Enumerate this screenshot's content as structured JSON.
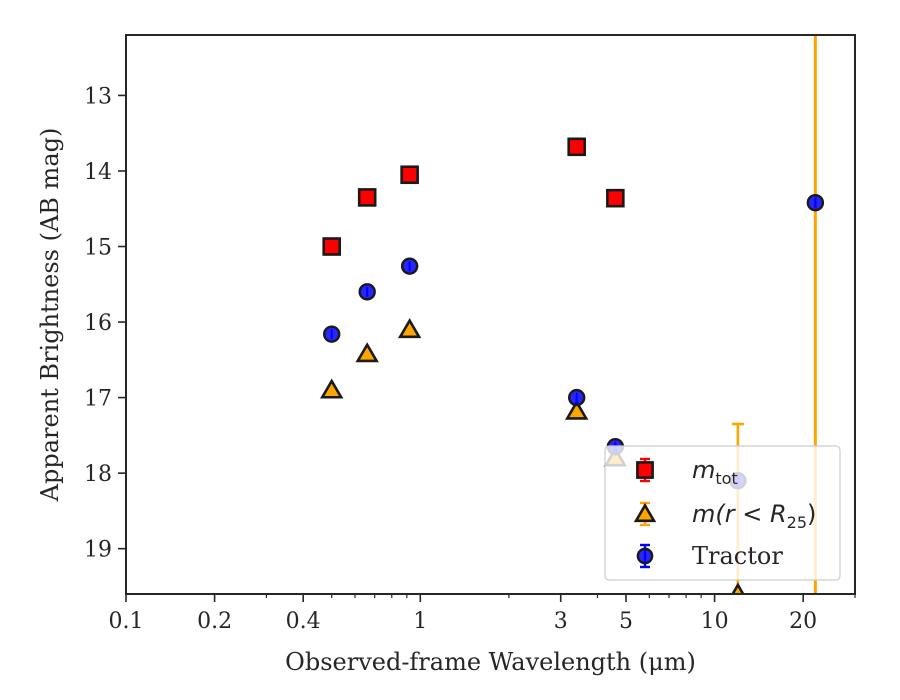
{
  "chart_data": {
    "type": "scatter",
    "title": "",
    "xlabel": "Observed-frame Wavelength (μm)",
    "ylabel": "Apparent Brightness (AB mag)",
    "xscale": "log",
    "yscale": "linear",
    "y_inverted": true,
    "xlim": [
      0.1,
      30
    ],
    "ylim": [
      19.6,
      12.2
    ],
    "xticks": [
      {
        "value": 0.1,
        "label": "0.1"
      },
      {
        "value": 0.2,
        "label": "0.2"
      },
      {
        "value": 0.4,
        "label": "0.4"
      },
      {
        "value": 1,
        "label": "1"
      },
      {
        "value": 3,
        "label": "3"
      },
      {
        "value": 5,
        "label": "5"
      },
      {
        "value": 10,
        "label": "10"
      },
      {
        "value": 20,
        "label": "20"
      }
    ],
    "yticks": [
      {
        "value": 13,
        "label": "13"
      },
      {
        "value": 14,
        "label": "14"
      },
      {
        "value": 15,
        "label": "15"
      },
      {
        "value": 16,
        "label": "16"
      },
      {
        "value": 17,
        "label": "17"
      },
      {
        "value": 18,
        "label": "18"
      },
      {
        "value": 19,
        "label": "19"
      }
    ],
    "grid": false,
    "legend_position": "lower-right",
    "series": [
      {
        "name": "m_tot",
        "legend_main": "m",
        "legend_sub": "tot",
        "marker": "square",
        "color": "#ff0000",
        "errcolor": "#ff0000",
        "points": [
          {
            "x": 0.5,
            "y": 15.0
          },
          {
            "x": 0.66,
            "y": 14.35
          },
          {
            "x": 0.92,
            "y": 14.05
          },
          {
            "x": 3.4,
            "y": 13.68
          },
          {
            "x": 4.6,
            "y": 14.36
          }
        ]
      },
      {
        "name": "m(r < R_25)",
        "legend_main": "m(r < R",
        "legend_sub": "25",
        "legend_close": ")",
        "marker": "triangle",
        "color": "#ffa500",
        "errcolor": "#ffa500",
        "points": [
          {
            "x": 0.5,
            "y": 16.9
          },
          {
            "x": 0.66,
            "y": 16.42
          },
          {
            "x": 0.92,
            "y": 16.1
          },
          {
            "x": 3.4,
            "y": 17.18
          },
          {
            "x": 4.6,
            "y": 17.8
          },
          {
            "x": 12.0,
            "y": 19.6,
            "err_up": 2.25
          }
        ]
      },
      {
        "name": "Tractor",
        "legend_main": "Tractor",
        "marker": "circle",
        "color": "#0000ff",
        "errcolor": "#0000ff",
        "points": [
          {
            "x": 0.5,
            "y": 16.16
          },
          {
            "x": 0.66,
            "y": 15.6
          },
          {
            "x": 0.92,
            "y": 15.26
          },
          {
            "x": 3.4,
            "y": 17.0
          },
          {
            "x": 4.6,
            "y": 17.65
          },
          {
            "x": 12.0,
            "y": 18.1
          },
          {
            "x": 22.0,
            "y": 14.42
          }
        ]
      }
    ],
    "vertical_errorbar": {
      "x": 22.0,
      "color": "#ffa500"
    }
  }
}
